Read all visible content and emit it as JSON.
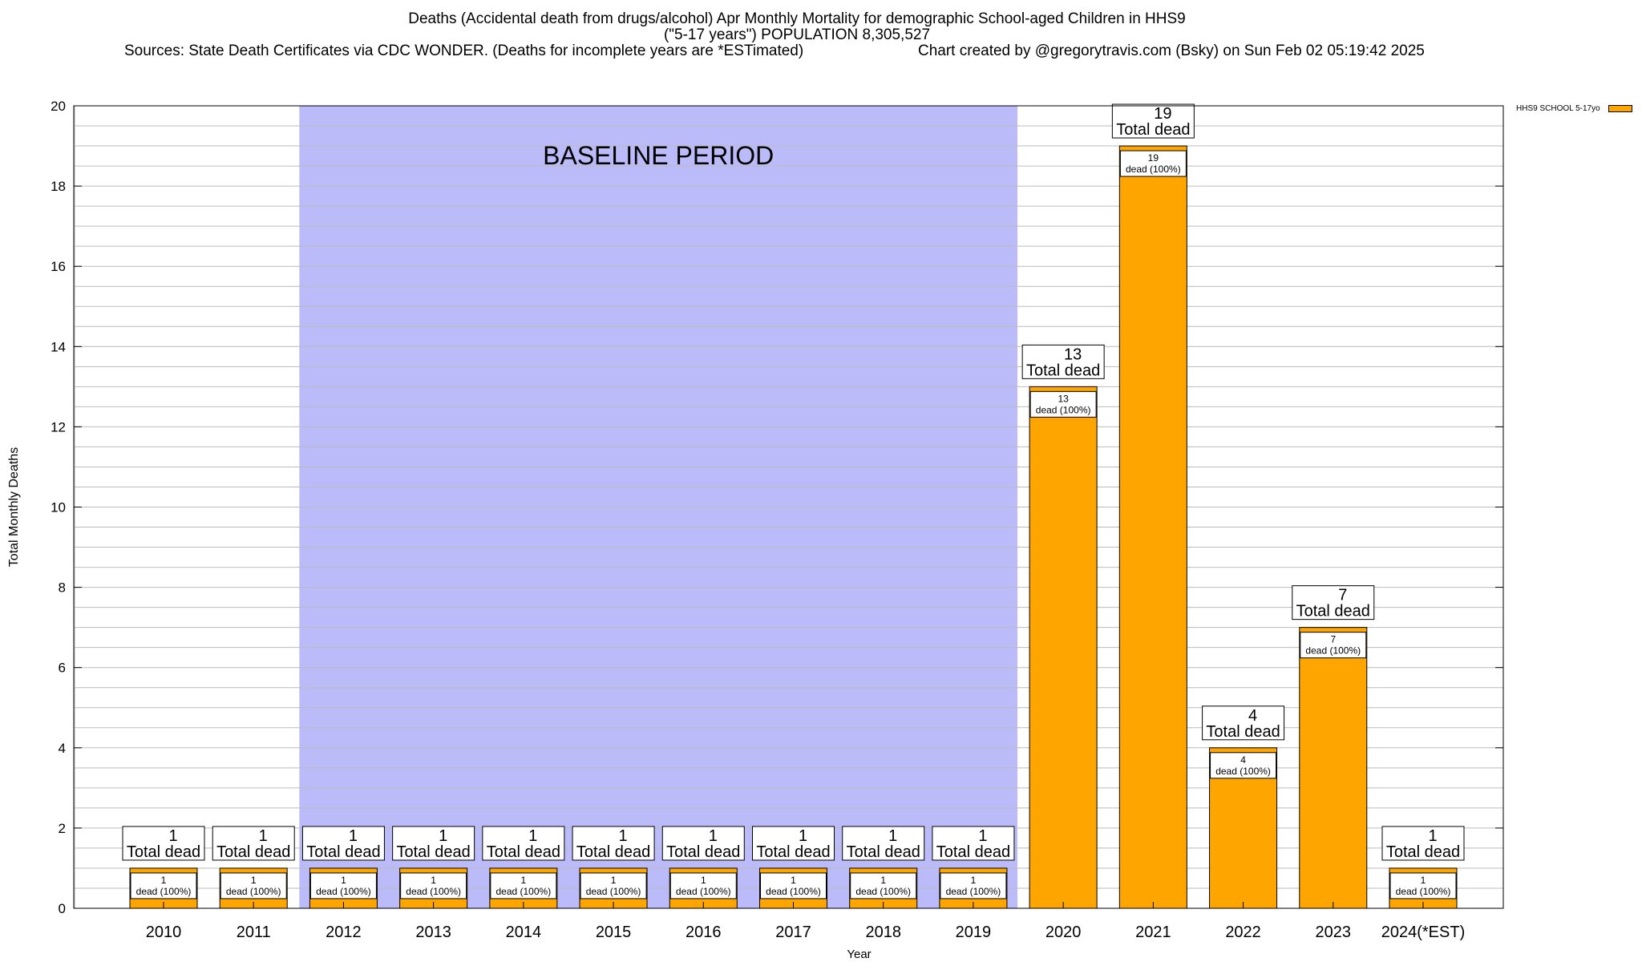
{
  "header": {
    "title_line1": "Deaths (Accidental death from drugs/alcohol) Apr Monthly Mortality for demographic School-aged Children in HHS9",
    "title_line2": "(\"5-17 years\") POPULATION 8,305,527",
    "sources": "Sources: State Death Certificates via CDC WONDER. (Deaths for incomplete years are *ESTimated)",
    "credit": "Chart created by @gregorytravis.com (Bsky) on Sun Feb 02 05:19:42 2025"
  },
  "legend": {
    "label": "HHS9 SCHOOL 5-17yo"
  },
  "colors": {
    "bar": "#ffa500",
    "baseline_band": "#bbbbf9",
    "grid": "#bbbbbb",
    "plot_border": "#000000"
  },
  "chart_data": {
    "type": "bar",
    "title": "Deaths (Accidental death from drugs/alcohol) Apr Monthly Mortality for demographic School-aged Children in HHS9",
    "xlabel": "Year",
    "ylabel": "Total Monthly Deaths",
    "ylim": [
      0,
      20
    ],
    "yticks": [
      0,
      2,
      4,
      6,
      8,
      10,
      12,
      14,
      16,
      18,
      20
    ],
    "grid": true,
    "legend_position": "top-right, outside plot",
    "categories": [
      "2010",
      "2011",
      "2012",
      "2013",
      "2014",
      "2015",
      "2016",
      "2017",
      "2018",
      "2019",
      "2020",
      "2021",
      "2022",
      "2023",
      "2024(*EST)"
    ],
    "series": [
      {
        "name": "HHS9 SCHOOL 5-17yo",
        "values": [
          1,
          1,
          1,
          1,
          1,
          1,
          1,
          1,
          1,
          1,
          13,
          19,
          4,
          7,
          1
        ]
      }
    ],
    "top_label_suffix": "Total dead",
    "inner_label_suffix": "dead (100%)",
    "baseline_period": {
      "label": "BASELINE PERIOD",
      "from": "2012",
      "to": "2019"
    }
  }
}
